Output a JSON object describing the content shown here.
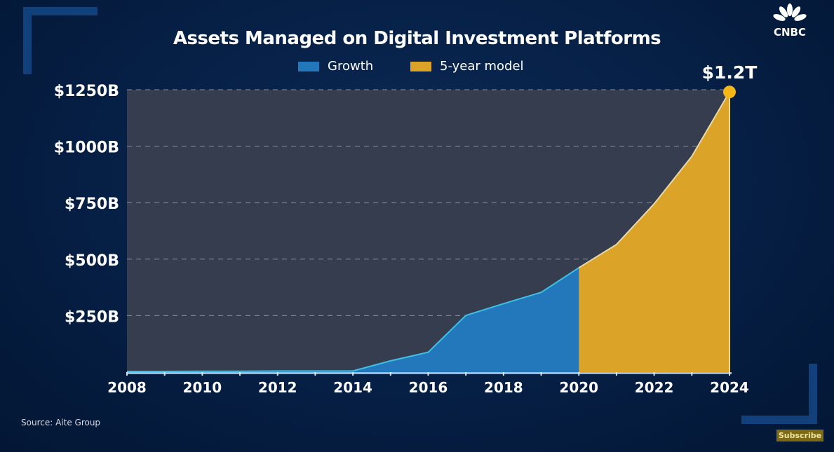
{
  "chart_data": {
    "type": "area",
    "title": "Assets Managed on Digital Investment Platforms",
    "x": [
      2008,
      2009,
      2010,
      2011,
      2012,
      2013,
      2014,
      2015,
      2016,
      2017,
      2018,
      2019,
      2020,
      2021,
      2022,
      2023,
      2024
    ],
    "series": [
      {
        "name": "Growth",
        "color": "#2278bb",
        "line_color": "#3fc0e6",
        "x": [
          2008,
          2009,
          2010,
          2011,
          2012,
          2013,
          2014,
          2015,
          2016,
          2017,
          2018,
          2019,
          2020
        ],
        "values": [
          3,
          3,
          4,
          4,
          5,
          5,
          5,
          50,
          88,
          251,
          303,
          353,
          462
        ]
      },
      {
        "name": "5-year model",
        "color": "#dca329",
        "line_color": "#e8d9a8",
        "x": [
          2020,
          2021,
          2022,
          2023,
          2024
        ],
        "values": [
          462,
          565,
          745,
          955,
          1240
        ]
      }
    ],
    "xlim": [
      2008,
      2024
    ],
    "ylim": [
      0,
      1250
    ],
    "x_ticks": [
      "2008",
      "2010",
      "2012",
      "2014",
      "2016",
      "2018",
      "2020",
      "2022",
      "2024"
    ],
    "x_tick_values": [
      2008,
      2010,
      2012,
      2014,
      2016,
      2018,
      2020,
      2022,
      2024
    ],
    "y_ticks": [
      "$250B",
      "$500B",
      "$750B",
      "$1000B",
      "$1250B"
    ],
    "y_tick_values": [
      250,
      500,
      750,
      1000,
      1250
    ],
    "grid": "horizontal dashed",
    "legend_placement": "top-center",
    "annotation": {
      "text": "$1.2T",
      "x": 2024,
      "y": 1240,
      "color": "#f5b818"
    },
    "plot_background": "#363d4e"
  },
  "source": "Source: Aite Group",
  "logo": "CNBC",
  "subscribe_label": "Subscribe"
}
